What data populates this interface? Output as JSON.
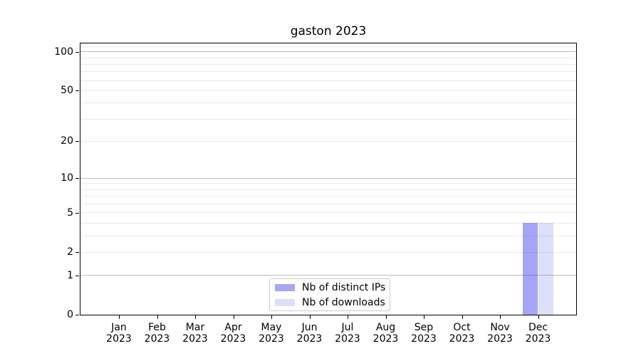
{
  "chart_data": {
    "type": "bar",
    "title": "gaston 2023",
    "categories": [
      "Jan",
      "Feb",
      "Mar",
      "Apr",
      "May",
      "Jun",
      "Jul",
      "Aug",
      "Sep",
      "Oct",
      "Nov",
      "Dec"
    ],
    "category_year": "2023",
    "series": [
      {
        "name": "Nb of distinct IPs",
        "color_hex": "#a6a6f3",
        "bar_rgba": "rgba(40,40,230,0.42)",
        "values": [
          0,
          0,
          0,
          0,
          0,
          0,
          0,
          0,
          0,
          0,
          0,
          4
        ]
      },
      {
        "name": "Nb of downloads",
        "color_hex": "#dedefb",
        "bar_rgba": "rgba(40,40,230,0.15)",
        "values": [
          0,
          0,
          0,
          0,
          0,
          0,
          0,
          0,
          0,
          0,
          0,
          4
        ]
      }
    ],
    "y_axis": {
      "scale": "log1p",
      "min": 0,
      "max": 116,
      "tick_values": [
        0,
        1,
        2,
        5,
        10,
        20,
        50,
        100
      ],
      "grid_major": [
        1,
        10,
        100
      ],
      "grid_minor": [
        2,
        3,
        4,
        5,
        6,
        7,
        8,
        9,
        20,
        30,
        40,
        50,
        60,
        70,
        80,
        90,
        110
      ]
    },
    "x_axis": {
      "grid": false
    },
    "legend": {
      "position": "lower center"
    },
    "colors": {
      "grid_major": "#bcbcbc",
      "grid_minor": "#e9e9e9",
      "axis": "#000000",
      "background": "#ffffff"
    }
  }
}
